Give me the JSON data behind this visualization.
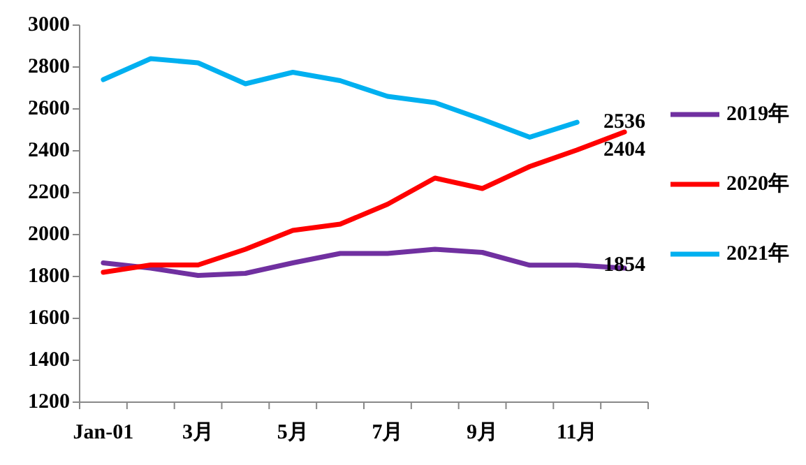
{
  "chart_data": {
    "type": "line",
    "categories": [
      "Jan-01",
      null,
      "3月",
      null,
      "5月",
      null,
      "7月",
      null,
      "9月",
      null,
      "11月",
      null
    ],
    "ylim": [
      1200,
      3000
    ],
    "yticks": [
      1200,
      1400,
      1600,
      1800,
      2000,
      2200,
      2400,
      2600,
      2800,
      3000
    ],
    "grid": false,
    "legend": "right",
    "series": [
      {
        "name": "2019年",
        "color": "#7030a0",
        "values": [
          1865,
          1840,
          1805,
          1815,
          1865,
          1910,
          1910,
          1930,
          1915,
          1854,
          1854,
          1840
        ],
        "value_labels": [
          null,
          null,
          null,
          null,
          null,
          null,
          null,
          null,
          null,
          null,
          "1854",
          null
        ]
      },
      {
        "name": "2020年",
        "color": "#ff0000",
        "values": [
          1820,
          1855,
          1855,
          1930,
          2020,
          2050,
          2145,
          2270,
          2220,
          2325,
          2404,
          2490
        ],
        "value_labels": [
          null,
          null,
          null,
          null,
          null,
          null,
          null,
          null,
          null,
          null,
          "2404",
          null
        ]
      },
      {
        "name": "2021年",
        "color": "#00b0f0",
        "values": [
          2740,
          2840,
          2820,
          2720,
          2775,
          2735,
          2660,
          2630,
          2550,
          2465,
          2536,
          null
        ],
        "value_labels": [
          null,
          null,
          null,
          null,
          null,
          null,
          null,
          null,
          null,
          null,
          "2536",
          null
        ]
      }
    ]
  }
}
